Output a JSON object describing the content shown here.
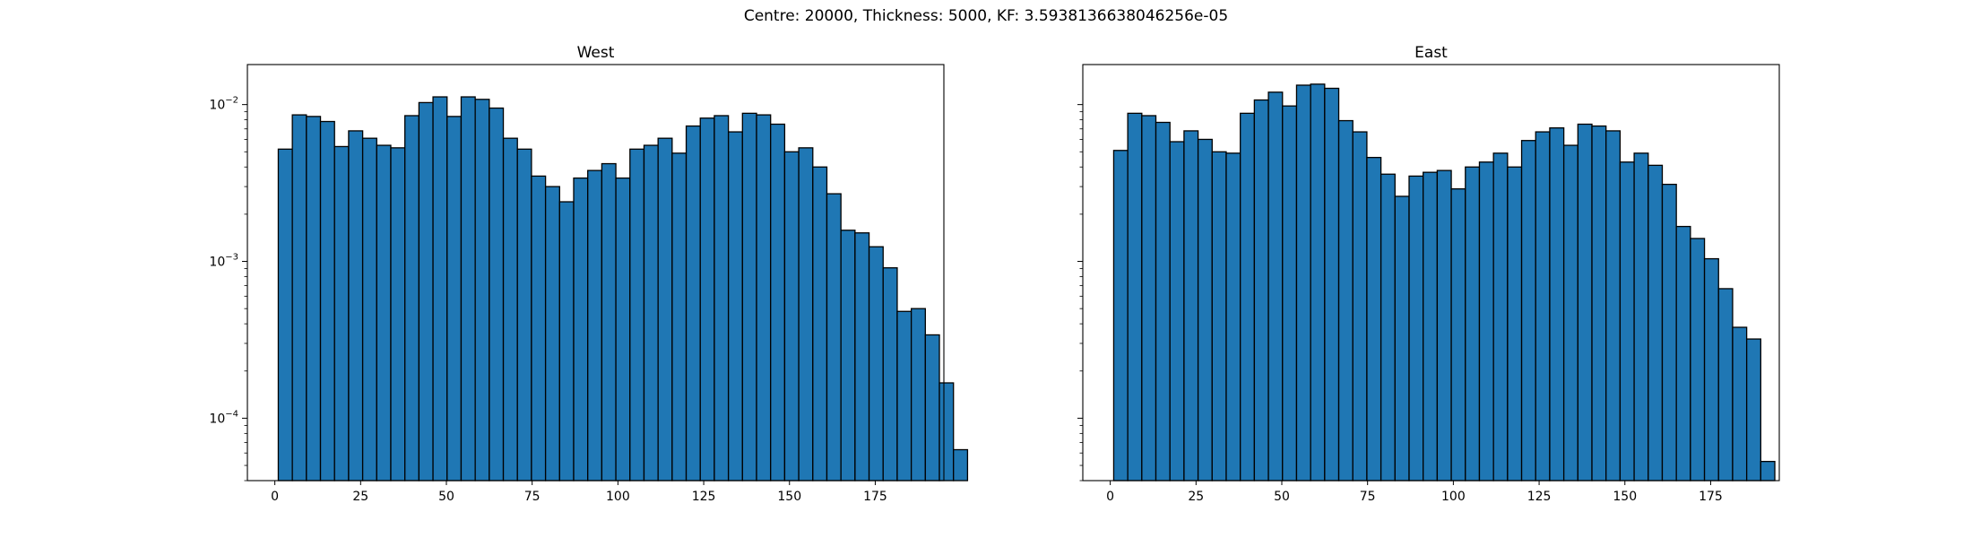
{
  "figure": {
    "title": "Centre: 20000, Thickness: 5000, KF: 3.5938136638046256e-05"
  },
  "chart_data": [
    {
      "type": "bar",
      "title": "West",
      "xlabel": "",
      "ylabel": "",
      "yscale": "log",
      "xlim": [
        -8,
        195
      ],
      "ylim": [
        4e-05,
        0.018
      ],
      "xticks": [
        0,
        25,
        50,
        75,
        100,
        125,
        150,
        175
      ],
      "yticks": [
        {
          "value": 0.0001,
          "exp": "-4"
        },
        {
          "value": 0.001,
          "exp": "-3"
        },
        {
          "value": 0.01,
          "exp": "-2"
        }
      ],
      "bin_width": 4.1,
      "bin_start": 1,
      "values": [
        0.0052,
        0.0086,
        0.0084,
        0.0078,
        0.0054,
        0.0068,
        0.0061,
        0.0055,
        0.0053,
        0.0085,
        0.0103,
        0.0112,
        0.0084,
        0.0112,
        0.0108,
        0.0095,
        0.0061,
        0.0052,
        0.0035,
        0.003,
        0.0024,
        0.0034,
        0.0038,
        0.0042,
        0.0034,
        0.0052,
        0.0055,
        0.0061,
        0.0049,
        0.0073,
        0.0082,
        0.0085,
        0.0067,
        0.0088,
        0.0086,
        0.0075,
        0.005,
        0.0053,
        0.004,
        0.0027,
        0.00158,
        0.00152,
        0.00124,
        0.00091,
        0.00048,
        0.0005,
        0.00034,
        0.000168,
        6.3e-05
      ],
      "bar_color": "#1f77b4",
      "edge_color": "#000000"
    },
    {
      "type": "bar",
      "title": "East",
      "xlabel": "",
      "ylabel": "",
      "yscale": "log",
      "xlim": [
        -8,
        195
      ],
      "ylim": [
        4e-05,
        0.018
      ],
      "xticks": [
        0,
        25,
        50,
        75,
        100,
        125,
        150,
        175
      ],
      "yticks": [
        {
          "value": 0.0001,
          "exp": "-4"
        },
        {
          "value": 0.001,
          "exp": "-3"
        },
        {
          "value": 0.01,
          "exp": "-2"
        }
      ],
      "bin_width": 4.1,
      "bin_start": 1,
      "values": [
        0.0051,
        0.0088,
        0.0085,
        0.0077,
        0.0058,
        0.0068,
        0.006,
        0.005,
        0.0049,
        0.0088,
        0.0107,
        0.012,
        0.0098,
        0.0133,
        0.0135,
        0.0127,
        0.0079,
        0.0067,
        0.0046,
        0.0036,
        0.0026,
        0.0035,
        0.0037,
        0.0038,
        0.0029,
        0.004,
        0.0043,
        0.0049,
        0.004,
        0.0059,
        0.0067,
        0.0071,
        0.0055,
        0.0075,
        0.0073,
        0.0068,
        0.0043,
        0.0049,
        0.0041,
        0.0031,
        0.00167,
        0.0014,
        0.00104,
        0.00067,
        0.00038,
        0.00032,
        5.3e-05
      ],
      "bar_color": "#1f77b4",
      "edge_color": "#000000"
    }
  ]
}
